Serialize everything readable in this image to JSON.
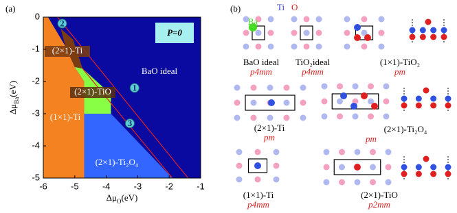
{
  "chart_data": {
    "type": "phase_diagram",
    "panel_label": "(a)",
    "x_label": {
      "symbol": "Δμ",
      "sub": "O",
      "unit": "(eV)"
    },
    "y_label": {
      "symbol": "Δμ",
      "sub": "Ba",
      "unit": "(eV)"
    },
    "xlim": [
      -6,
      -1
    ],
    "ylim": [
      -5,
      0
    ],
    "xticks": [
      -6,
      -5,
      -4,
      -3,
      -2,
      -1
    ],
    "yticks": [
      0,
      -1,
      -2,
      -3,
      -4,
      -5
    ],
    "annotation": "P=0",
    "regions": [
      {
        "name": "BaO ideal",
        "color": "#0a0aa0",
        "x": [
          -6,
          -1,
          -1,
          -6
        ],
        "y": [
          0,
          0,
          -5,
          -5
        ]
      },
      {
        "name": "(1×1)-Ti",
        "color": "#f58220",
        "x": [
          -6,
          -5.85,
          -5.3,
          -5.0,
          -4.7,
          -4.7,
          -6
        ],
        "y": [
          0,
          0,
          -0.9,
          -1.55,
          -2.0,
          -5,
          -5
        ]
      },
      {
        "name": "(2×1)-Ti",
        "color": "#7a3c10",
        "x": [
          -5.45,
          -5.05,
          -4.75,
          -5.0,
          -5.3
        ],
        "y": [
          -0.35,
          -0.7,
          -1.6,
          -1.55,
          -0.9
        ]
      },
      {
        "name": "(2×1)-TiO",
        "color": "#88ff44",
        "x": [
          -5.0,
          -4.75,
          -3.85,
          -3.85,
          -4.7,
          -4.7
        ],
        "y": [
          -1.55,
          -1.6,
          -2.4,
          -3.0,
          -3.0,
          -2.0
        ]
      },
      {
        "name": "(2×1)-Ti₂O₄",
        "color": "#3366ff",
        "x": [
          -4.7,
          -3.85,
          -1.9,
          -4.7
        ],
        "y": [
          -3.0,
          -3.0,
          -5,
          -5
        ]
      }
    ],
    "lines": [
      {
        "color": "#e02020",
        "x": [
          -5.55,
          -1.4
        ],
        "y": [
          0,
          -5
        ]
      },
      {
        "color": "#e02020",
        "x": [
          -4.75,
          -1.9
        ],
        "y": [
          -1.6,
          -5
        ]
      }
    ],
    "points": [
      {
        "label": "1",
        "x": -3.1,
        "y": -2.2
      },
      {
        "label": "2",
        "x": -5.4,
        "y": -0.2
      },
      {
        "label": "3",
        "x": -3.25,
        "y": -3.3
      }
    ]
  },
  "structures": {
    "panel_label": "(b)",
    "legend": {
      "ti": "Ti",
      "o": "O",
      "ba": "Ba"
    },
    "items": [
      {
        "name": "BaO ideal",
        "group": "p4mm"
      },
      {
        "name": "TiO₂ideal",
        "group": "p4mm"
      },
      {
        "name": "(1×1)-TiO₂",
        "group": "pm"
      },
      {
        "name": "(2×1)-Ti",
        "group": "pm"
      },
      {
        "name": "(2×1)-Ti₂O₄",
        "group": "pm"
      },
      {
        "name": "(1×1)-Ti",
        "group": "p4mm"
      },
      {
        "name": "(2×1)-TiO",
        "group": "p2mm"
      }
    ]
  }
}
